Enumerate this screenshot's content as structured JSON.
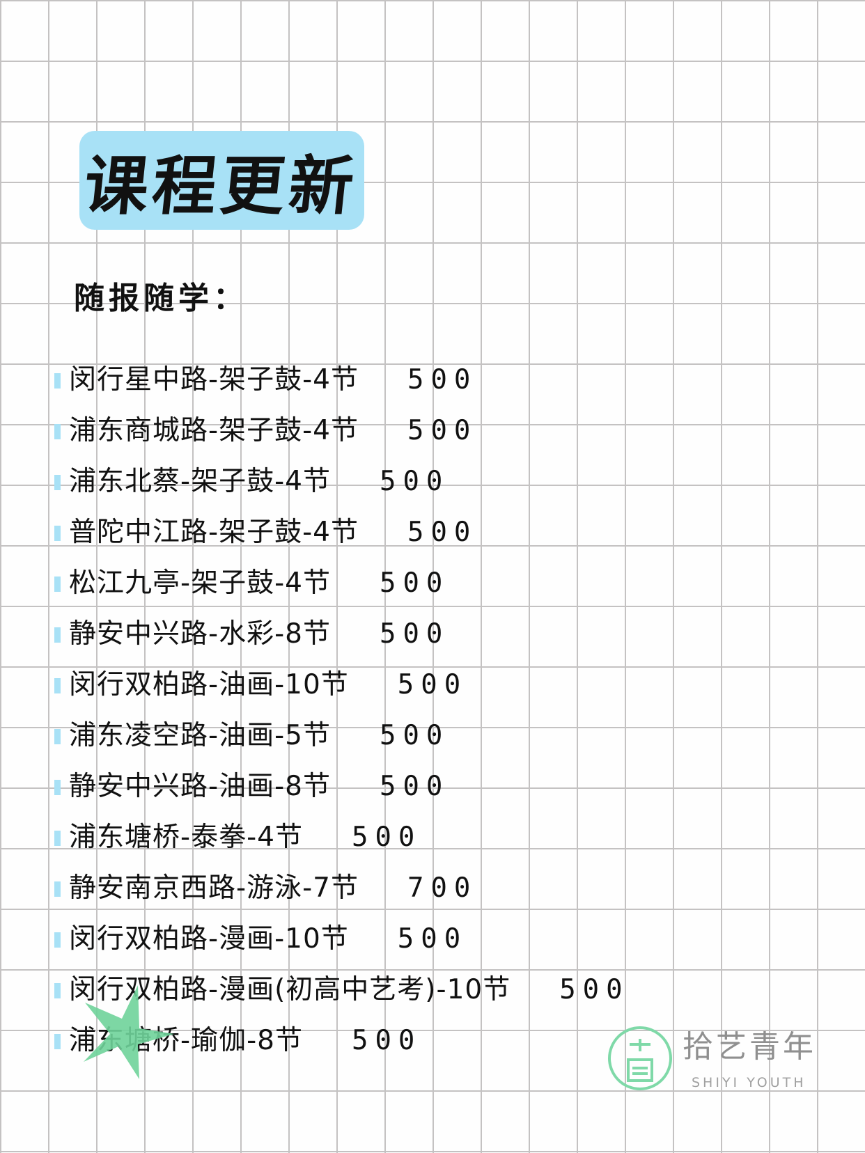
{
  "title": "课程更新",
  "subtitle": "随报随学：",
  "colors": {
    "accent": "#a8e1f6",
    "logo_green": "#7fd9a8",
    "grid": "#c4c2c2"
  },
  "courses": [
    {
      "name": "闵行星中路-架子鼓-4节",
      "price": "500"
    },
    {
      "name": "浦东商城路-架子鼓-4节",
      "price": "500"
    },
    {
      "name": "浦东北蔡-架子鼓-4节",
      "price": "500"
    },
    {
      "name": "普陀中江路-架子鼓-4节",
      "price": "500"
    },
    {
      "name": "松江九亭-架子鼓-4节",
      "price": "500"
    },
    {
      "name": "静安中兴路-水彩-8节",
      "price": "500"
    },
    {
      "name": "闵行双柏路-油画-10节",
      "price": "500"
    },
    {
      "name": "浦东凌空路-油画-5节",
      "price": "500"
    },
    {
      "name": "静安中兴路-油画-8节",
      "price": "500"
    },
    {
      "name": "浦东塘桥-泰拳-4节",
      "price": "500"
    },
    {
      "name": "静安南京西路-游泳-7节",
      "price": "700"
    },
    {
      "name": "闵行双柏路-漫画-10节",
      "price": "500"
    },
    {
      "name": "闵行双柏路-漫画(初高中艺考)-10节",
      "price": "500"
    },
    {
      "name": "浦东塘桥-瑜伽-8节",
      "price": "500"
    }
  ],
  "logo": {
    "mark": "拾艺",
    "name": "拾艺青年",
    "name_en": "SHIYI YOUTH"
  }
}
